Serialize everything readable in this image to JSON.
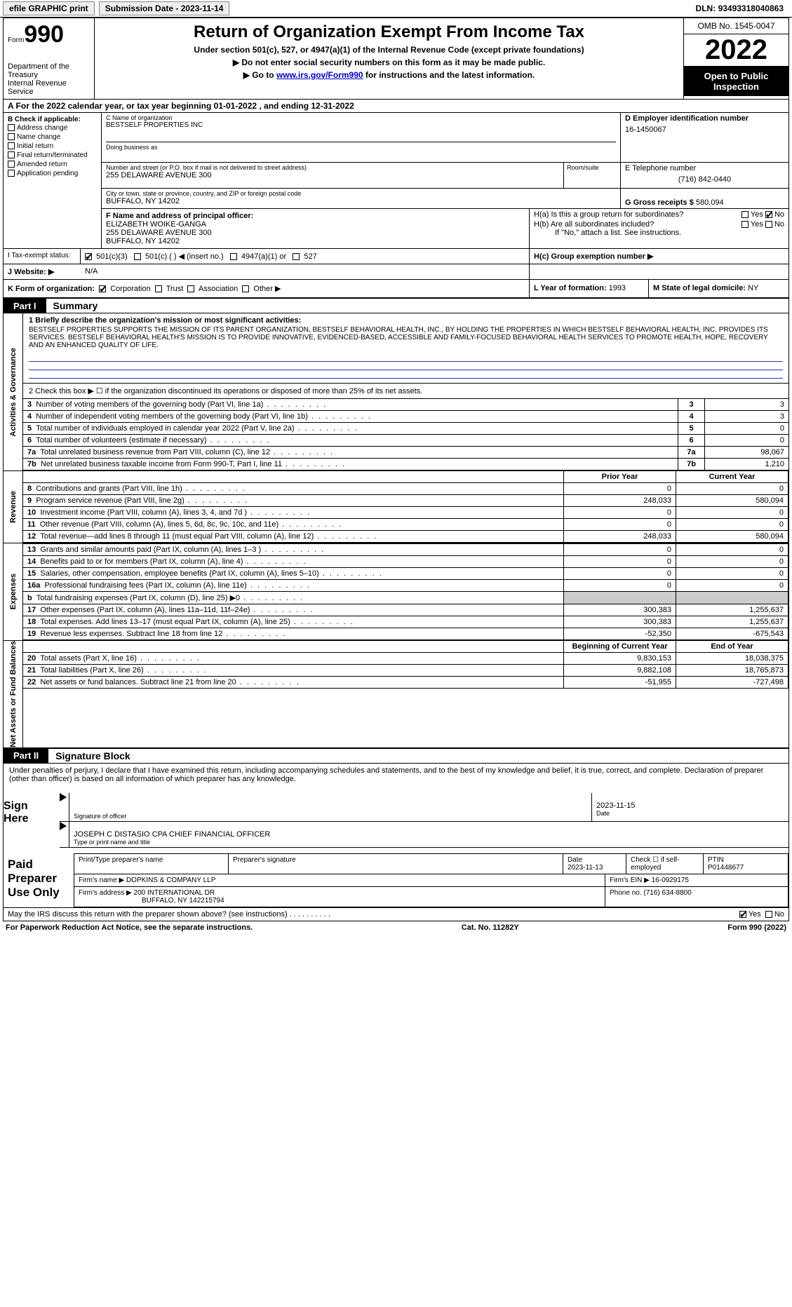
{
  "topbar": {
    "efile": "efile GRAPHIC print",
    "submission": "Submission Date - 2023-11-14",
    "dln_label": "DLN:",
    "dln": "93493318040863"
  },
  "header": {
    "form_word": "Form",
    "form_num": "990",
    "dept": "Department of the Treasury",
    "irs": "Internal Revenue Service",
    "title": "Return of Organization Exempt From Income Tax",
    "sub1": "Under section 501(c), 527, or 4947(a)(1) of the Internal Revenue Code (except private foundations)",
    "sub2": "▶ Do not enter social security numbers on this form as it may be made public.",
    "sub3_prefix": "▶ Go to ",
    "sub3_link": "www.irs.gov/Form990",
    "sub3_suffix": " for instructions and the latest information.",
    "omb": "OMB No. 1545-0047",
    "year": "2022",
    "open": "Open to Public Inspection"
  },
  "rowA": "A  For the 2022 calendar year, or tax year beginning 01-01-2022   , and ending 12-31-2022",
  "boxB": {
    "label": "B Check if applicable:",
    "items": [
      "Address change",
      "Name change",
      "Initial return",
      "Final return/terminated",
      "Amended return",
      "Application pending"
    ]
  },
  "boxC": {
    "label": "C Name of organization",
    "name": "BESTSELF PROPERTIES INC",
    "dba_label": "Doing business as",
    "street_label": "Number and street (or P.O. box if mail is not delivered to street address)",
    "street": "255 DELAWARE AVENUE 300",
    "room_label": "Room/suite",
    "city_label": "City or town, state or province, country, and ZIP or foreign postal code",
    "city": "BUFFALO, NY  14202"
  },
  "boxD": {
    "label": "D Employer identification number",
    "value": "16-1450067"
  },
  "boxE": {
    "label": "E Telephone number",
    "value": "(716) 842-0440"
  },
  "boxG": {
    "label": "G Gross receipts $",
    "value": "580,094"
  },
  "boxF": {
    "label": "F  Name and address of principal officer:",
    "name": "ELIZABETH WOIKE-GANGA",
    "addr1": "255 DELAWARE AVENUE 300",
    "addr2": "BUFFALO, NY  14202"
  },
  "boxH": {
    "a": "H(a)  Is this a group return for subordinates?",
    "b": "H(b)  Are all subordinates included?",
    "note": "If \"No,\" attach a list. See instructions.",
    "c": "H(c)  Group exemption number ▶",
    "yes": "Yes",
    "no": "No"
  },
  "boxI": {
    "label": "I   Tax-exempt status:",
    "opts": [
      "501(c)(3)",
      "501(c) (   ) ◀ (insert no.)",
      "4947(a)(1) or",
      "527"
    ]
  },
  "boxJ": {
    "label": "J  Website: ▶",
    "value": "N/A"
  },
  "boxK": {
    "label": "K Form of organization:",
    "opts": [
      "Corporation",
      "Trust",
      "Association",
      "Other ▶"
    ]
  },
  "boxL": {
    "label": "L Year of formation:",
    "value": "1993"
  },
  "boxM": {
    "label": "M State of legal domicile:",
    "value": "NY"
  },
  "part1": {
    "tab": "Part I",
    "title": "Summary"
  },
  "summary": {
    "line1_label": "1  Briefly describe the organization's mission or most significant activities:",
    "mission": "BESTSELF PROPERTIES SUPPORTS THE MISSION OF ITS PARENT ORGANIZATION, BESTSELF BEHAVIORAL HEALTH, INC., BY HOLDING THE PROPERTIES IN WHICH BESTSELF BEHAVIORAL HEALTH, INC. PROVIDES ITS SERVICES. BESTSELF BEHAVIORAL HEALTH'S MISSION IS TO PROVIDE INNOVATIVE, EVIDENCED-BASED, ACCESSIBLE AND FAMILY-FOCUSED BEHAVIORAL HEALTH SERVICES TO PROMOTE HEALTH, HOPE, RECOVERY AND AN ENHANCED QUALITY OF LIFE.",
    "line2": "2   Check this box ▶ ☐  if the organization discontinued its operations or disposed of more than 25% of its net assets.",
    "rows": [
      {
        "n": "3",
        "label": "Number of voting members of the governing body (Part VI, line 1a)",
        "val": "3"
      },
      {
        "n": "4",
        "label": "Number of independent voting members of the governing body (Part VI, line 1b)",
        "val": "3"
      },
      {
        "n": "5",
        "label": "Total number of individuals employed in calendar year 2022 (Part V, line 2a)",
        "val": "0"
      },
      {
        "n": "6",
        "label": "Total number of volunteers (estimate if necessary)",
        "val": "0"
      },
      {
        "n": "7a",
        "label": "Total unrelated business revenue from Part VIII, column (C), line 12",
        "val": "98,067"
      },
      {
        "n": "7b",
        "label": "Net unrelated business taxable income from Form 990-T, Part I, line 11",
        "val": "1,210"
      }
    ]
  },
  "sideLabels": {
    "ag": "Activities & Governance",
    "rev": "Revenue",
    "exp": "Expenses",
    "net": "Net Assets or Fund Balances"
  },
  "finHeaders": {
    "prior": "Prior Year",
    "current": "Current Year",
    "begin": "Beginning of Current Year",
    "end": "End of Year"
  },
  "revenue": [
    {
      "n": "8",
      "label": "Contributions and grants (Part VIII, line 1h)",
      "prior": "0",
      "cur": "0"
    },
    {
      "n": "9",
      "label": "Program service revenue (Part VIII, line 2g)",
      "prior": "248,033",
      "cur": "580,094"
    },
    {
      "n": "10",
      "label": "Investment income (Part VIII, column (A), lines 3, 4, and 7d )",
      "prior": "0",
      "cur": "0"
    },
    {
      "n": "11",
      "label": "Other revenue (Part VIII, column (A), lines 5, 6d, 8c, 9c, 10c, and 11e)",
      "prior": "0",
      "cur": "0"
    },
    {
      "n": "12",
      "label": "Total revenue—add lines 8 through 11 (must equal Part VIII, column (A), line 12)",
      "prior": "248,033",
      "cur": "580,094"
    }
  ],
  "expenses": [
    {
      "n": "13",
      "label": "Grants and similar amounts paid (Part IX, column (A), lines 1–3 )",
      "prior": "0",
      "cur": "0"
    },
    {
      "n": "14",
      "label": "Benefits paid to or for members (Part IX, column (A), line 4)",
      "prior": "0",
      "cur": "0"
    },
    {
      "n": "15",
      "label": "Salaries, other compensation, employee benefits (Part IX, column (A), lines 5–10)",
      "prior": "0",
      "cur": "0"
    },
    {
      "n": "16a",
      "label": "Professional fundraising fees (Part IX, column (A), line 11e)",
      "prior": "0",
      "cur": "0"
    },
    {
      "n": "b",
      "label": "Total fundraising expenses (Part IX, column (D), line 25) ▶0",
      "prior": "SHADE",
      "cur": "SHADE"
    },
    {
      "n": "17",
      "label": "Other expenses (Part IX, column (A), lines 11a–11d, 11f–24e)",
      "prior": "300,383",
      "cur": "1,255,637"
    },
    {
      "n": "18",
      "label": "Total expenses. Add lines 13–17 (must equal Part IX, column (A), line 25)",
      "prior": "300,383",
      "cur": "1,255,637"
    },
    {
      "n": "19",
      "label": "Revenue less expenses. Subtract line 18 from line 12",
      "prior": "-52,350",
      "cur": "-675,543"
    }
  ],
  "netassets": [
    {
      "n": "20",
      "label": "Total assets (Part X, line 16)",
      "prior": "9,830,153",
      "cur": "18,038,375"
    },
    {
      "n": "21",
      "label": "Total liabilities (Part X, line 26)",
      "prior": "9,882,108",
      "cur": "18,765,873"
    },
    {
      "n": "22",
      "label": "Net assets or fund balances. Subtract line 21 from line 20",
      "prior": "-51,955",
      "cur": "-727,498"
    }
  ],
  "part2": {
    "tab": "Part II",
    "title": "Signature Block"
  },
  "sig": {
    "penalty": "Under penalties of perjury, I declare that I have examined this return, including accompanying schedules and statements, and to the best of my knowledge and belief, it is true, correct, and complete. Declaration of preparer (other than officer) is based on all information of which preparer has any knowledge.",
    "sign_here": "Sign Here",
    "sig_officer": "Signature of officer",
    "date": "Date",
    "date_val": "2023-11-15",
    "name_title": "JOSEPH C DISTASIO CPA  CHIEF FINANCIAL OFFICER",
    "type_label": "Type or print name and title"
  },
  "paid": {
    "label": "Paid Preparer Use Only",
    "h1": "Print/Type preparer's name",
    "h2": "Preparer's signature",
    "h3": "Date",
    "date": "2023-11-13",
    "h4_check": "Check ☐ if self-employed",
    "h5": "PTIN",
    "ptin": "P01448677",
    "firm_name_lbl": "Firm's name   ▶",
    "firm_name": "DOPKINS & COMPANY LLP",
    "firm_ein_lbl": "Firm's EIN ▶",
    "firm_ein": "16-0929175",
    "firm_addr_lbl": "Firm's address ▶",
    "firm_addr1": "200 INTERNATIONAL DR",
    "firm_addr2": "BUFFALO, NY  142215794",
    "phone_lbl": "Phone no.",
    "phone": "(716) 634-8800"
  },
  "footer": {
    "discuss": "May the IRS discuss this return with the preparer shown above? (see instructions)",
    "yes": "Yes",
    "no": "No",
    "pra": "For Paperwork Reduction Act Notice, see the separate instructions.",
    "cat": "Cat. No. 11282Y",
    "form": "Form 990 (2022)"
  }
}
